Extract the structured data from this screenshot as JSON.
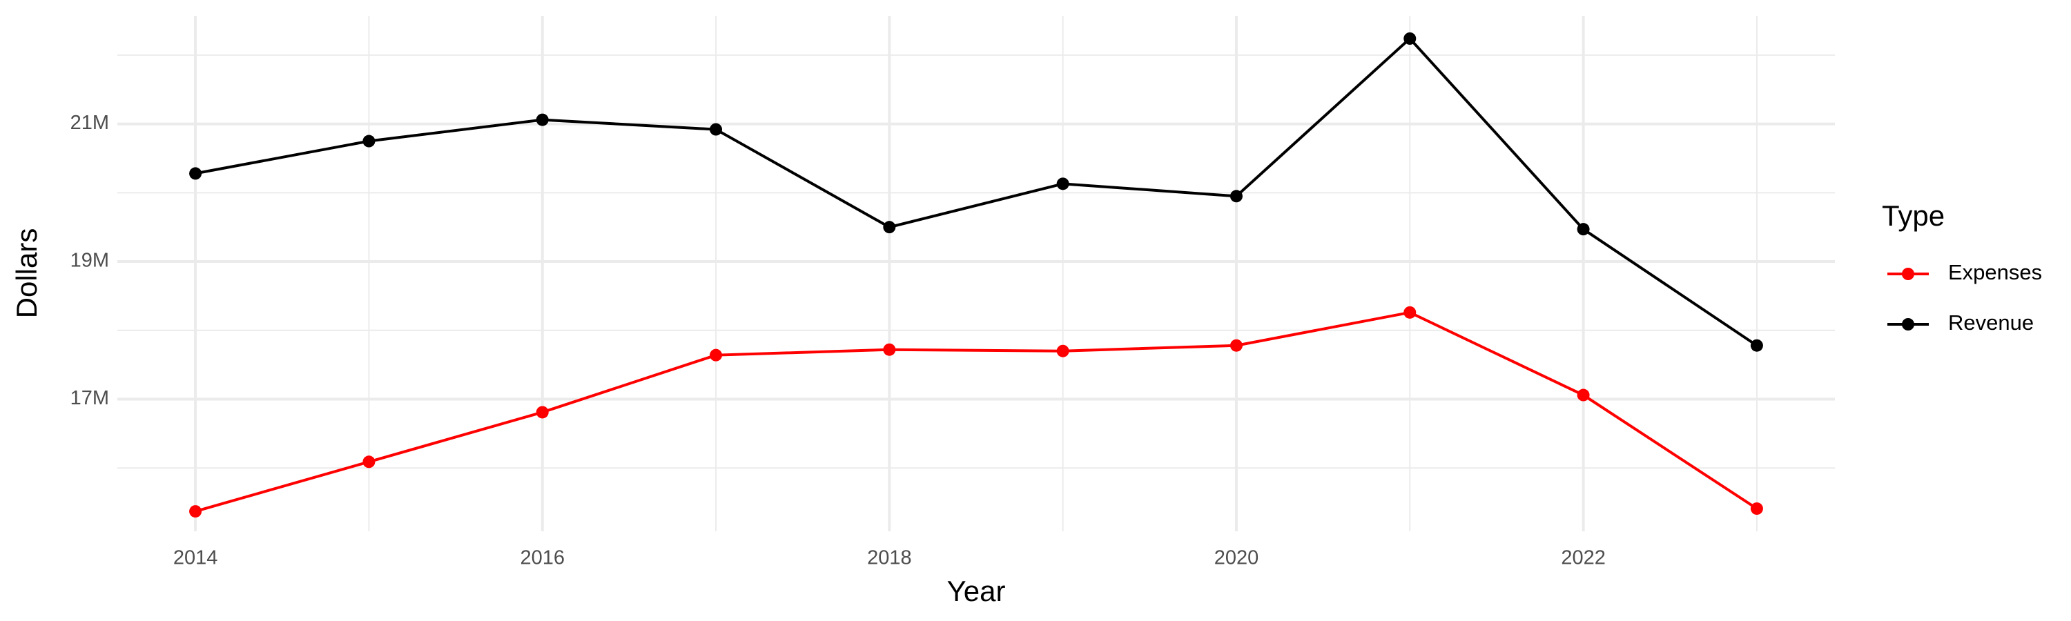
{
  "chart_data": {
    "type": "line",
    "x_label": "Year",
    "y_label": "Dollars",
    "legend_title": "Type",
    "x": [
      2014,
      2015,
      2016,
      2017,
      2018,
      2019,
      2020,
      2021,
      2022,
      2023
    ],
    "series": [
      {
        "name": "Expenses",
        "color": "#ff0000",
        "values": [
          15370000,
          16090000,
          16810000,
          17640000,
          17720000,
          17700000,
          17780000,
          18260000,
          17060000,
          15410000
        ]
      },
      {
        "name": "Revenue",
        "color": "#000000",
        "values": [
          20280000,
          20750000,
          21060000,
          20920000,
          19500000,
          20130000,
          19950000,
          22240000,
          19470000,
          17780000
        ]
      }
    ],
    "xlim": [
      2013.55,
      2023.45
    ],
    "xticks": [
      2014,
      2016,
      2018,
      2020,
      2022
    ],
    "ylim": [
      15080000,
      22570000
    ],
    "yticks": [
      {
        "value": 17000000,
        "label": "17M"
      },
      {
        "value": 19000000,
        "label": "19M"
      },
      {
        "value": 21000000,
        "label": "21M"
      }
    ],
    "grid": true,
    "legend_position": "right"
  }
}
